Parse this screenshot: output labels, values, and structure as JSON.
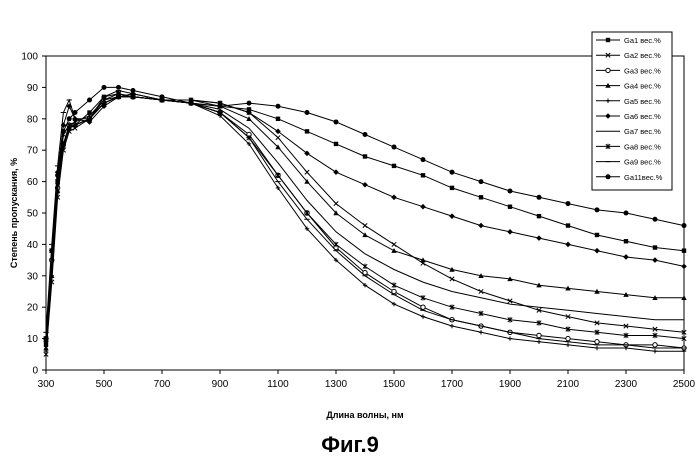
{
  "figure_caption": "Фиг.9",
  "chart_data": {
    "type": "line",
    "title": "",
    "xlabel": "Длина волны, нм",
    "ylabel": "Степень пропускания, %",
    "xlim": [
      300,
      2500
    ],
    "ylim": [
      0,
      100
    ],
    "xticks": [
      300,
      500,
      700,
      900,
      1100,
      1300,
      1500,
      1700,
      1900,
      2100,
      2300,
      2500
    ],
    "yticks": [
      0,
      10,
      20,
      30,
      40,
      50,
      60,
      70,
      80,
      90,
      100
    ],
    "grid": false,
    "legend_position": "top-right",
    "x": [
      300,
      320,
      340,
      360,
      380,
      400,
      450,
      500,
      550,
      600,
      700,
      800,
      900,
      1000,
      1100,
      1200,
      1300,
      1400,
      1500,
      1600,
      1700,
      1800,
      1900,
      2000,
      2100,
      2200,
      2300,
      2400,
      2500
    ],
    "series": [
      {
        "name": "Ga1 вес.%",
        "marker": "square",
        "values": [
          8,
          35,
          60,
          72,
          77,
          78,
          82,
          87,
          88,
          87,
          86,
          85,
          84,
          83,
          80,
          76,
          72,
          68,
          65,
          62,
          58,
          55,
          52,
          49,
          46,
          43,
          41,
          39,
          38
        ]
      },
      {
        "name": "Ga2 вес.%",
        "marker": "x",
        "values": [
          5,
          28,
          55,
          70,
          76,
          77,
          80,
          86,
          87,
          87,
          86,
          86,
          85,
          82,
          74,
          63,
          53,
          46,
          40,
          34,
          29,
          25,
          22,
          19,
          17,
          15,
          14,
          13,
          12
        ]
      },
      {
        "name": "Ga3 вес.%",
        "marker": "circle",
        "values": [
          10,
          35,
          58,
          72,
          78,
          78,
          80,
          85,
          87,
          87,
          86,
          85,
          82,
          75,
          62,
          50,
          39,
          31,
          25,
          20,
          16,
          14,
          12,
          11,
          10,
          9,
          8,
          8,
          7
        ]
      },
      {
        "name": "Ga4 вес.%",
        "marker": "triangle",
        "values": [
          7,
          30,
          57,
          72,
          77,
          78,
          80,
          85,
          87,
          87,
          86,
          86,
          84,
          80,
          71,
          60,
          50,
          43,
          38,
          35,
          32,
          30,
          29,
          27,
          26,
          25,
          24,
          23,
          23
        ]
      },
      {
        "name": "Ga5 вес.%",
        "marker": "plus",
        "values": [
          6,
          30,
          57,
          71,
          77,
          78,
          80,
          85,
          87,
          87,
          86,
          85,
          81,
          72,
          58,
          45,
          35,
          27,
          21,
          17,
          14,
          12,
          10,
          9,
          8,
          7,
          7,
          6,
          6
        ]
      },
      {
        "name": "Ga6 вес.%",
        "marker": "diamond",
        "values": [
          9,
          38,
          63,
          78,
          84,
          80,
          79,
          84,
          87,
          88,
          86,
          86,
          85,
          82,
          76,
          69,
          63,
          59,
          55,
          52,
          49,
          46,
          44,
          42,
          40,
          38,
          36,
          35,
          33
        ]
      },
      {
        "name": "Ga7 вес.%",
        "marker": "none",
        "values": [
          6,
          32,
          60,
          75,
          78,
          78,
          80,
          85,
          87,
          87,
          86,
          85,
          83,
          77,
          66,
          54,
          44,
          37,
          32,
          28,
          25,
          23,
          21,
          20,
          19,
          18,
          17,
          16,
          16
        ]
      },
      {
        "name": "Ga8 вес.%",
        "marker": "star",
        "values": [
          10,
          38,
          60,
          75,
          78,
          79,
          81,
          86,
          88,
          87,
          86,
          85,
          82,
          74,
          62,
          50,
          40,
          33,
          27,
          23,
          20,
          18,
          16,
          15,
          13,
          12,
          11,
          11,
          10
        ]
      },
      {
        "name": "Ga9 вес.%",
        "marker": "dash",
        "values": [
          12,
          40,
          65,
          82,
          86,
          80,
          80,
          87,
          89,
          88,
          86,
          85,
          82,
          74,
          60,
          48,
          38,
          30,
          24,
          19,
          16,
          14,
          12,
          10,
          9,
          8,
          8,
          7,
          7
        ]
      },
      {
        "name": "Ga11вес.%",
        "marker": "dot",
        "values": [
          10,
          38,
          62,
          76,
          80,
          82,
          86,
          90,
          90,
          89,
          87,
          85,
          84,
          85,
          84,
          82,
          79,
          75,
          71,
          67,
          63,
          60,
          57,
          55,
          53,
          51,
          50,
          48,
          46
        ]
      }
    ]
  }
}
